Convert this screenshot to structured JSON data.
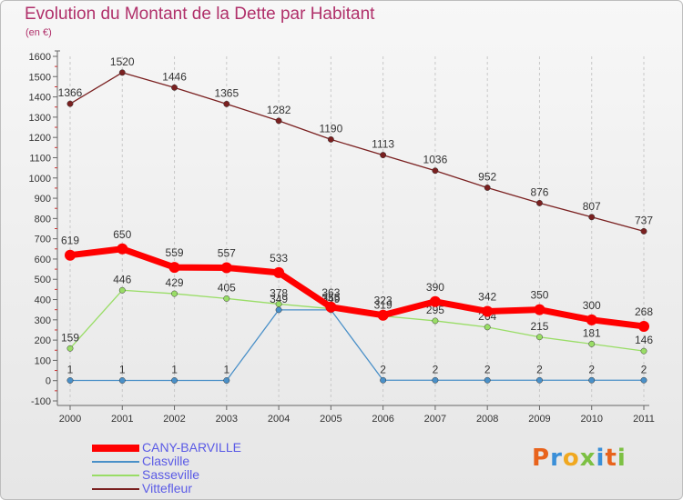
{
  "title": "Evolution du Montant de la Dette par Habitant",
  "subtitle": "(en €)",
  "logo": "Proxiti",
  "colors": {
    "title": "#b0306a",
    "legend_text": "#5a5ae6",
    "logo_letters": [
      "#e8631c",
      "#3a8fd8",
      "#f0a820",
      "#7cc043",
      "#3a8fd8",
      "#e8631c",
      "#7cc043"
    ]
  },
  "chart_data": {
    "type": "line",
    "title": "Evolution du Montant de la Dette par Habitant",
    "subtitle": "(en €)",
    "xlabel": "",
    "ylabel": "",
    "x": [
      "2000",
      "2001",
      "2002",
      "2003",
      "2004",
      "2005",
      "2006",
      "2007",
      "2008",
      "2009",
      "2010",
      "2011"
    ],
    "ylim": [
      -100,
      1600
    ],
    "yticks": [
      -100,
      0,
      100,
      200,
      300,
      400,
      500,
      600,
      700,
      800,
      900,
      1000,
      1100,
      1200,
      1300,
      1400,
      1500,
      1600
    ],
    "grid": "vertical dashed lines",
    "legend_position": "bottom-left",
    "series": [
      {
        "name": "CANY-BARVILLE",
        "color": "#ff0000",
        "values": [
          619,
          650,
          559,
          557,
          533,
          363,
          323,
          390,
          342,
          350,
          300,
          268
        ]
      },
      {
        "name": "Clasville",
        "color": "#4a90c8",
        "values": [
          1,
          1,
          1,
          1,
          349,
          349,
          2,
          2,
          2,
          2,
          2,
          2
        ]
      },
      {
        "name": "Sasseville",
        "color": "#99dd66",
        "values": [
          159,
          446,
          429,
          405,
          378,
          355,
          319,
          295,
          264,
          215,
          181,
          146
        ]
      },
      {
        "name": "Vittefleur",
        "color": "#7a2020",
        "values": [
          1366,
          1520,
          1446,
          1365,
          1282,
          1190,
          1113,
          1036,
          952,
          876,
          807,
          737
        ]
      }
    ]
  }
}
